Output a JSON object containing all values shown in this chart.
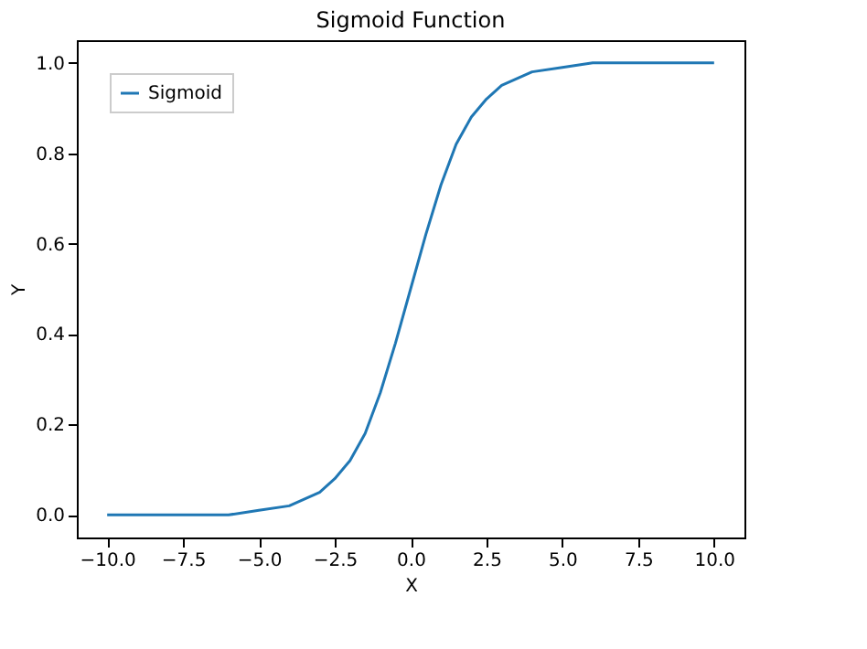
{
  "chart_data": {
    "type": "line",
    "title": "Sigmoid Function",
    "xlabel": "X",
    "ylabel": "Y",
    "x": [
      -10,
      -8,
      -6,
      -5,
      -4,
      -3,
      -2.5,
      -2,
      -1.5,
      -1,
      -0.5,
      0,
      0.5,
      1,
      1.5,
      2,
      2.5,
      3,
      4,
      5,
      6,
      8,
      10
    ],
    "series": [
      {
        "name": "Sigmoid",
        "color": "#1f77b4",
        "values": [
          0.0,
          0.0,
          0.0,
          0.01,
          0.02,
          0.05,
          0.08,
          0.12,
          0.18,
          0.27,
          0.38,
          0.5,
          0.62,
          0.73,
          0.82,
          0.88,
          0.92,
          0.95,
          0.98,
          0.99,
          1.0,
          1.0,
          1.0
        ]
      }
    ],
    "xlim": [
      -11,
      11
    ],
    "xticks": [
      {
        "value": -10,
        "label": "−10.0"
      },
      {
        "value": -7.5,
        "label": "−7.5"
      },
      {
        "value": -5,
        "label": "−5.0"
      },
      {
        "value": -2.5,
        "label": "−2.5"
      },
      {
        "value": 0,
        "label": "0.0"
      },
      {
        "value": 2.5,
        "label": "2.5"
      },
      {
        "value": 5,
        "label": "5.0"
      },
      {
        "value": 7.5,
        "label": "7.5"
      },
      {
        "value": 10,
        "label": "10.0"
      }
    ],
    "ylim": [
      -0.05,
      1.05
    ],
    "yticks": [
      {
        "value": 0,
        "label": "0.0"
      },
      {
        "value": 0.2,
        "label": "0.2"
      },
      {
        "value": 0.4,
        "label": "0.4"
      },
      {
        "value": 0.6,
        "label": "0.6"
      },
      {
        "value": 0.8,
        "label": "0.8"
      },
      {
        "value": 1.0,
        "label": "1.0"
      }
    ],
    "grid": false,
    "legend": "top left",
    "marker": "none",
    "line_style": "solid"
  }
}
